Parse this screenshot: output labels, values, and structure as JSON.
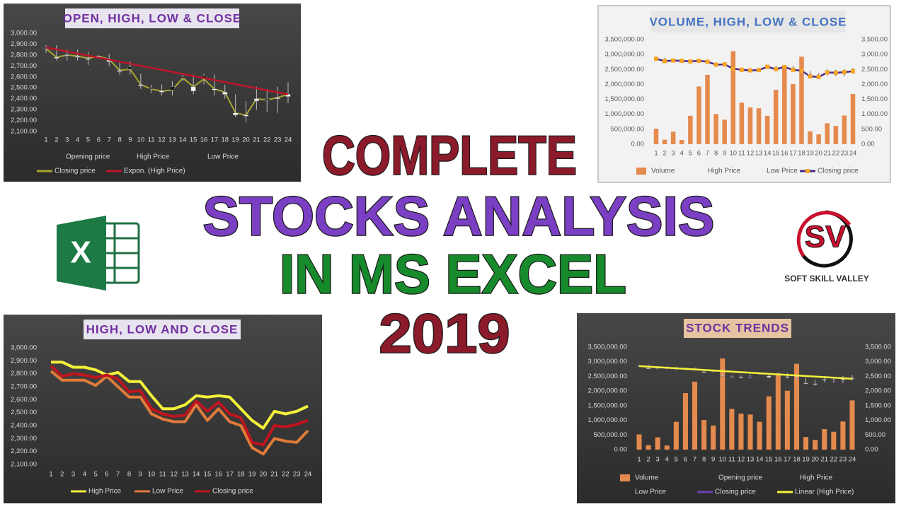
{
  "headline": {
    "lines": [
      {
        "text": "COMPLETE",
        "color": "#8b1a2b"
      },
      {
        "text": "STOCKS ANALYSIS",
        "color": "#7b3fc4"
      },
      {
        "text": "IN MS EXCEL",
        "color": "#178a2c"
      },
      {
        "text": "2019",
        "color": "#8b1a2b"
      }
    ]
  },
  "excel_icon": {
    "letter": "X"
  },
  "logo": {
    "mark": "SV",
    "name": "SOFT SKILL VALLEY"
  },
  "chart_data": [
    {
      "type": "ohlc",
      "title": "OPEN, HIGH, LOW & CLOSE",
      "grid": false,
      "up_color": "#ffffff",
      "down_color": "#1e1e1e",
      "categories": [
        "1",
        "2",
        "3",
        "4",
        "5",
        "6",
        "7",
        "8",
        "9",
        "10",
        "11",
        "12",
        "13",
        "14",
        "15",
        "16",
        "17",
        "18",
        "19",
        "20",
        "21",
        "22",
        "23",
        "24"
      ],
      "series": [
        {
          "name": "Opening price",
          "values": [
            2870,
            2770,
            2800,
            2780,
            2760,
            2780,
            2740,
            2650,
            2690,
            2520,
            2500,
            2460,
            2510,
            2600,
            2470,
            2610,
            2480,
            2440,
            2250,
            2240,
            2380,
            2400,
            2400,
            2420
          ]
        },
        {
          "name": "High Price",
          "values": [
            2890,
            2890,
            2850,
            2850,
            2830,
            2790,
            2810,
            2740,
            2740,
            2630,
            2530,
            2530,
            2560,
            2630,
            2620,
            2630,
            2620,
            2530,
            2440,
            2380,
            2510,
            2490,
            2510,
            2550
          ]
        },
        {
          "name": "Low Price",
          "values": [
            2820,
            2750,
            2750,
            2750,
            2710,
            2780,
            2700,
            2620,
            2620,
            2490,
            2450,
            2430,
            2430,
            2560,
            2440,
            2530,
            2430,
            2400,
            2230,
            2180,
            2300,
            2280,
            2270,
            2360
          ]
        },
        {
          "name": "Closing price",
          "color": "#a9a530",
          "values": [
            2860,
            2780,
            2800,
            2790,
            2770,
            2790,
            2760,
            2660,
            2670,
            2530,
            2490,
            2470,
            2480,
            2590,
            2510,
            2580,
            2490,
            2460,
            2270,
            2250,
            2400,
            2390,
            2410,
            2440
          ]
        }
      ],
      "trendline": {
        "name": "Expon. (High Price)",
        "color": "#c0142a",
        "x": [
          1,
          24
        ],
        "values": [
          2870,
          2440
        ]
      },
      "ylim": [
        2100,
        3000
      ],
      "yticks": [
        {
          "value": 2100,
          "label": "2,100.00"
        },
        {
          "value": 2200,
          "label": "2,200.00"
        },
        {
          "value": 2300,
          "label": "2,300.00"
        },
        {
          "value": 2400,
          "label": "2,400.00"
        },
        {
          "value": 2500,
          "label": "2,500.00"
        },
        {
          "value": 2600,
          "label": "2,600.00"
        },
        {
          "value": 2700,
          "label": "2,700.00"
        },
        {
          "value": 2800,
          "label": "2,800.00"
        },
        {
          "value": 2900,
          "label": "2,900.00"
        },
        {
          "value": 3000,
          "label": "3,000.00"
        }
      ]
    },
    {
      "type": "vhlc",
      "title": "VOLUME, HIGH, LOW & CLOSE",
      "grid": false,
      "categories": [
        "1",
        "2",
        "3",
        "4",
        "5",
        "6",
        "7",
        "8",
        "9",
        "10",
        "11",
        "12",
        "13",
        "14",
        "15",
        "16",
        "17",
        "18",
        "19",
        "20",
        "21",
        "22",
        "23",
        "24"
      ],
      "series": [
        {
          "name": "Volume",
          "color": "#e58a4e",
          "values": [
            520000,
            150000,
            420000,
            140000,
            950000,
            1930000,
            2320000,
            1010000,
            820000,
            3110000,
            1390000,
            1230000,
            1200000,
            950000,
            1820000,
            2610000,
            2010000,
            2930000,
            430000,
            330000,
            700000,
            610000,
            960000,
            1680000
          ]
        },
        {
          "name": "High Price",
          "axis": "y2",
          "values": [
            2890,
            2890,
            2850,
            2850,
            2830,
            2790,
            2810,
            2740,
            2740,
            2630,
            2530,
            2530,
            2560,
            2630,
            2620,
            2630,
            2620,
            2530,
            2440,
            2380,
            2510,
            2490,
            2510,
            2550
          ]
        },
        {
          "name": "Low Price",
          "axis": "y2",
          "values": [
            2820,
            2750,
            2750,
            2750,
            2710,
            2780,
            2700,
            2620,
            2620,
            2490,
            2450,
            2430,
            2430,
            2560,
            2440,
            2530,
            2430,
            2400,
            2230,
            2180,
            2300,
            2280,
            2270,
            2360
          ]
        },
        {
          "name": "Closing price",
          "axis": "y2",
          "color": "#4b2a8a",
          "marker_color": "#f5a623",
          "values": [
            2860,
            2780,
            2800,
            2790,
            2770,
            2790,
            2760,
            2660,
            2670,
            2530,
            2490,
            2470,
            2480,
            2590,
            2510,
            2580,
            2490,
            2460,
            2270,
            2250,
            2400,
            2390,
            2410,
            2440
          ]
        }
      ],
      "ylim": [
        0,
        3500000
      ],
      "yticks": [
        {
          "value": 0,
          "label": "0.00"
        },
        {
          "value": 500000,
          "label": "500,000.00"
        },
        {
          "value": 1000000,
          "label": "1,000,000.00"
        },
        {
          "value": 1500000,
          "label": "1,500,000.00"
        },
        {
          "value": 2000000,
          "label": "2,000,000.00"
        },
        {
          "value": 2500000,
          "label": "2,500,000.00"
        },
        {
          "value": 3000000,
          "label": "3,000,000.00"
        },
        {
          "value": 3500000,
          "label": "3,500,000.00"
        }
      ],
      "y2lim": [
        0,
        3500
      ],
      "y2ticks": [
        {
          "value": 0,
          "label": "0.00"
        },
        {
          "value": 500,
          "label": "500.00"
        },
        {
          "value": 1000,
          "label": "1,000.00"
        },
        {
          "value": 1500,
          "label": "1,500.00"
        },
        {
          "value": 2000,
          "label": "2,000.00"
        },
        {
          "value": 2500,
          "label": "2,500.00"
        },
        {
          "value": 3000,
          "label": "3,000.00"
        },
        {
          "value": 3500,
          "label": "3,500.00"
        }
      ]
    },
    {
      "type": "line",
      "title": "HIGH, LOW AND CLOSE",
      "grid": false,
      "categories": [
        "1",
        "2",
        "3",
        "4",
        "5",
        "6",
        "7",
        "8",
        "9",
        "10",
        "11",
        "12",
        "13",
        "14",
        "15",
        "16",
        "17",
        "18",
        "19",
        "20",
        "21",
        "22",
        "23",
        "24"
      ],
      "series": [
        {
          "name": "High Price",
          "color": "#f4f23a",
          "values": [
            2890,
            2890,
            2850,
            2850,
            2830,
            2790,
            2810,
            2740,
            2740,
            2630,
            2530,
            2530,
            2560,
            2630,
            2620,
            2630,
            2620,
            2530,
            2440,
            2380,
            2510,
            2490,
            2510,
            2550
          ]
        },
        {
          "name": "Low Price",
          "color": "#e07b39",
          "values": [
            2820,
            2750,
            2750,
            2750,
            2710,
            2780,
            2700,
            2620,
            2620,
            2490,
            2450,
            2430,
            2430,
            2560,
            2440,
            2530,
            2430,
            2400,
            2230,
            2180,
            2300,
            2280,
            2270,
            2360
          ]
        },
        {
          "name": "Closing price",
          "color": "#c0141e",
          "values": [
            2860,
            2780,
            2800,
            2790,
            2770,
            2790,
            2760,
            2660,
            2670,
            2530,
            2490,
            2470,
            2480,
            2590,
            2510,
            2580,
            2490,
            2460,
            2270,
            2250,
            2400,
            2390,
            2410,
            2440
          ]
        }
      ],
      "ylim": [
        2100,
        3000
      ],
      "yticks": [
        {
          "value": 2100,
          "label": "2,100.00"
        },
        {
          "value": 2200,
          "label": "2,200.00"
        },
        {
          "value": 2300,
          "label": "2,300.00"
        },
        {
          "value": 2400,
          "label": "2,400.00"
        },
        {
          "value": 2500,
          "label": "2,500.00"
        },
        {
          "value": 2600,
          "label": "2,600.00"
        },
        {
          "value": 2700,
          "label": "2,700.00"
        },
        {
          "value": 2800,
          "label": "2,800.00"
        },
        {
          "value": 2900,
          "label": "2,900.00"
        },
        {
          "value": 3000,
          "label": "3,000.00"
        }
      ]
    },
    {
      "type": "vohlc",
      "title": "STOCK TRENDS",
      "grid": false,
      "up_color": "#ffffff",
      "down_color": "#4b2a7a",
      "categories": [
        "1",
        "2",
        "3",
        "4",
        "5",
        "6",
        "7",
        "8",
        "9",
        "10",
        "11",
        "12",
        "13",
        "14",
        "15",
        "16",
        "17",
        "18",
        "19",
        "20",
        "21",
        "22",
        "23",
        "24"
      ],
      "series": [
        {
          "name": "Volume",
          "color": "#e58a4e",
          "values": [
            520000,
            150000,
            420000,
            140000,
            950000,
            1930000,
            2320000,
            1010000,
            820000,
            3110000,
            1390000,
            1230000,
            1200000,
            950000,
            1820000,
            2610000,
            2010000,
            2930000,
            430000,
            330000,
            700000,
            610000,
            960000,
            1680000
          ]
        },
        {
          "name": "Opening price",
          "axis": "y2",
          "values": [
            2870,
            2770,
            2800,
            2780,
            2760,
            2780,
            2740,
            2650,
            2690,
            2520,
            2500,
            2460,
            2510,
            2600,
            2470,
            2610,
            2480,
            2440,
            2250,
            2240,
            2380,
            2400,
            2400,
            2420
          ]
        },
        {
          "name": "High Price",
          "axis": "y2",
          "values": [
            2890,
            2890,
            2850,
            2850,
            2830,
            2790,
            2810,
            2740,
            2740,
            2630,
            2530,
            2530,
            2560,
            2630,
            2620,
            2630,
            2620,
            2530,
            2440,
            2380,
            2510,
            2490,
            2510,
            2550
          ]
        },
        {
          "name": "Low Price",
          "axis": "y2",
          "values": [
            2820,
            2750,
            2750,
            2750,
            2710,
            2780,
            2700,
            2620,
            2620,
            2490,
            2450,
            2430,
            2430,
            2560,
            2440,
            2530,
            2430,
            2400,
            2230,
            2180,
            2300,
            2280,
            2270,
            2360
          ]
        },
        {
          "name": "Closing price",
          "axis": "y2",
          "color": "#6a3fb0",
          "values": [
            2860,
            2780,
            2800,
            2790,
            2770,
            2790,
            2760,
            2660,
            2670,
            2530,
            2490,
            2470,
            2480,
            2590,
            2510,
            2580,
            2490,
            2460,
            2270,
            2250,
            2400,
            2390,
            2410,
            2440
          ]
        }
      ],
      "trendline": {
        "name": "Linear (High Price)",
        "axis": "y2",
        "color": "#f4f23a",
        "x": [
          1,
          24
        ],
        "values": [
          2850,
          2420
        ]
      },
      "ylim": [
        0,
        3500000
      ],
      "yticks": [
        {
          "value": 0,
          "label": "0.00"
        },
        {
          "value": 500000,
          "label": "500,000.00"
        },
        {
          "value": 1000000,
          "label": "1,000,000.00"
        },
        {
          "value": 1500000,
          "label": "1,500,000.00"
        },
        {
          "value": 2000000,
          "label": "2,000,000.00"
        },
        {
          "value": 2500000,
          "label": "2,500,000.00"
        },
        {
          "value": 3000000,
          "label": "3,000,000.00"
        },
        {
          "value": 3500000,
          "label": "3,500,000.00"
        }
      ],
      "y2lim": [
        0,
        3500
      ],
      "y2ticks": [
        {
          "value": 0,
          "label": "0.00"
        },
        {
          "value": 500,
          "label": "500.00"
        },
        {
          "value": 1000,
          "label": "1,000.00"
        },
        {
          "value": 1500,
          "label": "1,500.00"
        },
        {
          "value": 2000,
          "label": "2,000.00"
        },
        {
          "value": 2500,
          "label": "2,500.00"
        },
        {
          "value": 3000,
          "label": "3,000.00"
        },
        {
          "value": 3500,
          "label": "3,500.00"
        }
      ]
    }
  ]
}
